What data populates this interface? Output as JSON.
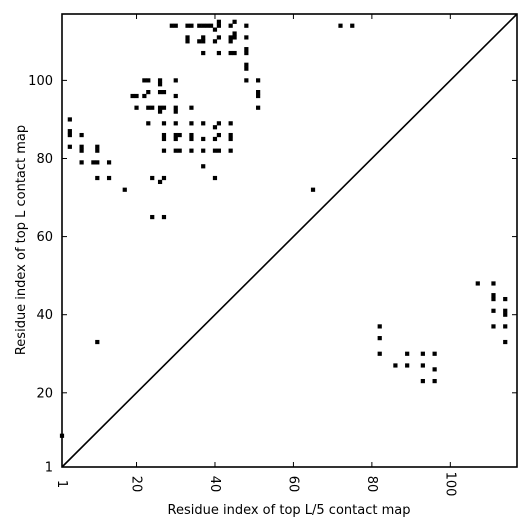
{
  "chart_data": {
    "type": "scatter",
    "title": "",
    "xlabel": "Residue index of top L/5 contact map",
    "ylabel": "Residue index of top L contact map",
    "xlim": [
      1,
      117
    ],
    "ylim": [
      1,
      117
    ],
    "x_ticks": [
      1,
      20,
      40,
      60,
      80,
      100
    ],
    "y_ticks": [
      1,
      20,
      40,
      60,
      80,
      100
    ],
    "grid": false,
    "marker": "square",
    "colors": {
      "marker": "#000000",
      "diagonal": "#000000",
      "frame": "#000000"
    },
    "diagonal": [
      [
        1,
        1
      ],
      [
        117,
        117
      ]
    ],
    "series": [
      {
        "role": "upper-triangle (top L contacts)",
        "points": [
          [
            1,
            9
          ],
          [
            3,
            90
          ],
          [
            3,
            87
          ],
          [
            3,
            86
          ],
          [
            3,
            83
          ],
          [
            6,
            86
          ],
          [
            6,
            83
          ],
          [
            6,
            82
          ],
          [
            6,
            79
          ],
          [
            9,
            79
          ],
          [
            10,
            83
          ],
          [
            10,
            82
          ],
          [
            10,
            79
          ],
          [
            10,
            75
          ],
          [
            10,
            33
          ],
          [
            13,
            79
          ],
          [
            13,
            75
          ],
          [
            17,
            72
          ],
          [
            19,
            96
          ],
          [
            20,
            96
          ],
          [
            20,
            93
          ],
          [
            22,
            100
          ],
          [
            23,
            100
          ],
          [
            22,
            96
          ],
          [
            23,
            97
          ],
          [
            23,
            93
          ],
          [
            23,
            89
          ],
          [
            24,
            93
          ],
          [
            24,
            75
          ],
          [
            24,
            65
          ],
          [
            26,
            100
          ],
          [
            26,
            99
          ],
          [
            26,
            97
          ],
          [
            26,
            93
          ],
          [
            26,
            92
          ],
          [
            26,
            74
          ],
          [
            27,
            97
          ],
          [
            27,
            93
          ],
          [
            27,
            89
          ],
          [
            27,
            86
          ],
          [
            27,
            85
          ],
          [
            27,
            82
          ],
          [
            27,
            75
          ],
          [
            27,
            65
          ],
          [
            29,
            114
          ],
          [
            30,
            114
          ],
          [
            30,
            100
          ],
          [
            30,
            96
          ],
          [
            30,
            93
          ],
          [
            30,
            92
          ],
          [
            30,
            89
          ],
          [
            30,
            86
          ],
          [
            30,
            85
          ],
          [
            30,
            82
          ],
          [
            31,
            86
          ],
          [
            31,
            82
          ],
          [
            33,
            114
          ],
          [
            34,
            114
          ],
          [
            33,
            111
          ],
          [
            33,
            110
          ],
          [
            34,
            93
          ],
          [
            34,
            89
          ],
          [
            34,
            86
          ],
          [
            34,
            85
          ],
          [
            34,
            82
          ],
          [
            36,
            114
          ],
          [
            36,
            110
          ],
          [
            37,
            114
          ],
          [
            37,
            111
          ],
          [
            37,
            110
          ],
          [
            37,
            107
          ],
          [
            37,
            89
          ],
          [
            37,
            85
          ],
          [
            37,
            82
          ],
          [
            37,
            78
          ],
          [
            38,
            114
          ],
          [
            39,
            114
          ],
          [
            40,
            113
          ],
          [
            40,
            110
          ],
          [
            40,
            88
          ],
          [
            40,
            85
          ],
          [
            40,
            82
          ],
          [
            40,
            75
          ],
          [
            41,
            115
          ],
          [
            41,
            114
          ],
          [
            41,
            111
          ],
          [
            41,
            107
          ],
          [
            41,
            89
          ],
          [
            41,
            86
          ],
          [
            41,
            82
          ],
          [
            44,
            114
          ],
          [
            44,
            111
          ],
          [
            44,
            110
          ],
          [
            44,
            107
          ],
          [
            44,
            89
          ],
          [
            44,
            86
          ],
          [
            44,
            85
          ],
          [
            44,
            82
          ],
          [
            45,
            115
          ],
          [
            45,
            112
          ],
          [
            45,
            111
          ],
          [
            45,
            107
          ],
          [
            48,
            114
          ],
          [
            48,
            111
          ],
          [
            48,
            108
          ],
          [
            48,
            107
          ],
          [
            48,
            104
          ],
          [
            48,
            103
          ],
          [
            48,
            100
          ],
          [
            51,
            100
          ],
          [
            51,
            97
          ],
          [
            51,
            96
          ],
          [
            51,
            93
          ],
          [
            65,
            72
          ],
          [
            72,
            114
          ],
          [
            75,
            114
          ]
        ]
      },
      {
        "role": "lower-triangle (top L/5 contacts)",
        "points": [
          [
            82,
            37
          ],
          [
            82,
            34
          ],
          [
            82,
            30
          ],
          [
            86,
            27
          ],
          [
            89,
            30
          ],
          [
            89,
            27
          ],
          [
            93,
            30
          ],
          [
            93,
            27
          ],
          [
            93,
            23
          ],
          [
            96,
            30
          ],
          [
            96,
            26
          ],
          [
            96,
            23
          ],
          [
            107,
            48
          ],
          [
            111,
            48
          ],
          [
            111,
            45
          ],
          [
            111,
            44
          ],
          [
            111,
            41
          ],
          [
            111,
            37
          ],
          [
            114,
            44
          ],
          [
            114,
            41
          ],
          [
            114,
            40
          ],
          [
            114,
            37
          ],
          [
            114,
            33
          ]
        ]
      }
    ]
  }
}
